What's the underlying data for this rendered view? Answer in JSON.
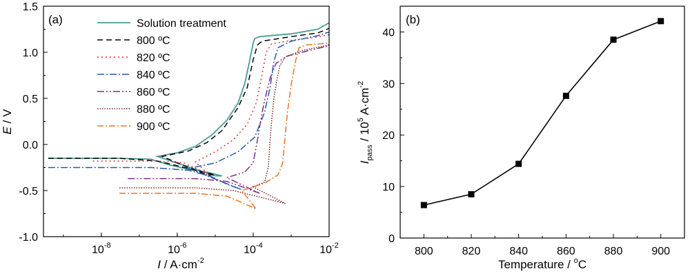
{
  "chart_data": [
    {
      "type": "line",
      "panel_label": "(a)",
      "xlabel": {
        "italic": "I",
        "text": " / A·cm",
        "sup": "-2"
      },
      "ylabel": {
        "italic": "E",
        "text": " / V"
      },
      "x_scale": "log",
      "xlim": [
        3e-10,
        0.01
      ],
      "ylim": [
        -1.0,
        1.5
      ],
      "x_ticks": [
        {
          "value": 1e-08,
          "base": "10",
          "exp": "-8"
        },
        {
          "value": 1e-06,
          "base": "10",
          "exp": "-6"
        },
        {
          "value": 0.0001,
          "base": "10",
          "exp": "-4"
        },
        {
          "value": 0.01,
          "base": "10",
          "exp": "-2"
        }
      ],
      "y_ticks": [
        {
          "value": -1.0,
          "label": "-1.0"
        },
        {
          "value": -0.5,
          "label": "-0.5"
        },
        {
          "value": 0.0,
          "label": "0.0"
        },
        {
          "value": 0.5,
          "label": "0.5"
        },
        {
          "value": 1.0,
          "label": "1.0"
        },
        {
          "value": 1.5,
          "label": "1.5"
        }
      ],
      "legend_position": "top-center",
      "series": [
        {
          "name": "Solution treatment",
          "color": "#4a9a94",
          "dash": "solid",
          "points": [
            [
              4e-10,
              -0.15
            ],
            [
              3e-08,
              -0.15
            ],
            [
              2e-07,
              -0.16
            ],
            [
              6e-07,
              -0.22
            ],
            [
              2e-06,
              -0.27
            ],
            [
              6e-06,
              -0.3
            ],
            [
              1.5e-05,
              -0.34
            ],
            [
              1e-05,
              -0.34
            ],
            [
              3e-07,
              -0.13
            ],
            [
              1e-06,
              -0.09
            ],
            [
              3e-06,
              -0.02
            ],
            [
              8e-06,
              0.1
            ],
            [
              2e-05,
              0.26
            ],
            [
              4e-05,
              0.45
            ],
            [
              6e-05,
              0.66
            ],
            [
              8e-05,
              0.9
            ],
            [
              0.0001,
              1.1
            ],
            [
              0.00011,
              1.15
            ],
            [
              0.00015,
              1.17
            ],
            [
              0.001,
              1.2
            ],
            [
              0.005,
              1.25
            ],
            [
              0.01,
              1.32
            ]
          ]
        },
        {
          "name": "800 ºC",
          "color": "#000000",
          "dash": "8,5",
          "points": [
            [
              4e-10,
              -0.15
            ],
            [
              3e-08,
              -0.15
            ],
            [
              3e-07,
              -0.18
            ],
            [
              1e-06,
              -0.23
            ],
            [
              4e-06,
              -0.29
            ],
            [
              1e-05,
              -0.33
            ],
            [
              6e-06,
              -0.33
            ],
            [
              4e-07,
              -0.13
            ],
            [
              2e-06,
              -0.07
            ],
            [
              6e-06,
              0.02
            ],
            [
              1.5e-05,
              0.15
            ],
            [
              4e-05,
              0.4
            ],
            [
              7e-05,
              0.62
            ],
            [
              0.0001,
              0.92
            ],
            [
              0.00013,
              1.08
            ],
            [
              0.00017,
              1.12
            ],
            [
              0.001,
              1.17
            ],
            [
              0.005,
              1.21
            ],
            [
              0.01,
              1.26
            ]
          ]
        },
        {
          "name": "820 ºC",
          "color": "#dc3030",
          "dash": "2,4",
          "points": [
            [
              6e-09,
              -0.18
            ],
            [
              3e-07,
              -0.18
            ],
            [
              1.5e-06,
              -0.2
            ],
            [
              4e-06,
              -0.28
            ],
            [
              9e-06,
              -0.37
            ],
            [
              3e-06,
              -0.19
            ],
            [
              1e-05,
              -0.08
            ],
            [
              3e-05,
              0.05
            ],
            [
              7e-05,
              0.22
            ],
            [
              0.00012,
              0.45
            ],
            [
              0.00017,
              0.75
            ],
            [
              0.00022,
              1.0
            ],
            [
              0.0003,
              1.09
            ],
            [
              0.001,
              1.13
            ],
            [
              0.004,
              1.16
            ],
            [
              0.01,
              1.19
            ]
          ]
        },
        {
          "name": "840 ºC",
          "color": "#2456b4",
          "dash": "10,3,2,3",
          "points": [
            [
              4e-10,
              -0.25
            ],
            [
              1e-08,
              -0.25
            ],
            [
              2e-07,
              -0.25
            ],
            [
              2e-06,
              -0.28
            ],
            [
              8e-06,
              -0.35
            ],
            [
              2e-05,
              -0.43
            ],
            [
              5e-05,
              -0.49
            ],
            [
              2e-06,
              -0.26
            ],
            [
              1e-05,
              -0.2
            ],
            [
              4e-05,
              -0.08
            ],
            [
              0.00011,
              0.08
            ],
            [
              0.0002,
              0.35
            ],
            [
              0.00028,
              0.62
            ],
            [
              0.00035,
              0.9
            ],
            [
              0.00045,
              1.05
            ],
            [
              0.001,
              1.12
            ],
            [
              0.005,
              1.18
            ],
            [
              0.01,
              1.22
            ]
          ]
        },
        {
          "name": "860 ºC",
          "color": "#7b2c8c",
          "dash": "10,3,2,3,2,3",
          "points": [
            [
              5e-08,
              -0.37
            ],
            [
              3e-06,
              -0.37
            ],
            [
              2e-05,
              -0.4
            ],
            [
              6e-05,
              -0.47
            ],
            [
              0.00015,
              -0.53
            ],
            [
              2e-05,
              -0.36
            ],
            [
              6e-05,
              -0.3
            ],
            [
              0.0001,
              -0.2
            ],
            [
              0.00013,
              0.05
            ],
            [
              0.00016,
              0.28
            ],
            [
              0.0002,
              0.48
            ],
            [
              0.00028,
              0.72
            ],
            [
              0.0004,
              0.88
            ],
            [
              0.0008,
              0.96
            ],
            [
              0.003,
              1.02
            ],
            [
              0.01,
              1.07
            ]
          ]
        },
        {
          "name": "880 ºC",
          "color": "#7a1c1c",
          "dash": "1.5,2",
          "points": [
            [
              3e-08,
              -0.47
            ],
            [
              3e-06,
              -0.47
            ],
            [
              3e-05,
              -0.5
            ],
            [
              0.00015,
              -0.57
            ],
            [
              0.0007,
              -0.64
            ],
            [
              0.0001,
              -0.46
            ],
            [
              0.0002,
              -0.41
            ],
            [
              0.00025,
              -0.25
            ],
            [
              0.00028,
              0.05
            ],
            [
              0.00031,
              0.28
            ],
            [
              0.00035,
              0.5
            ],
            [
              0.00042,
              0.7
            ],
            [
              0.0005,
              0.85
            ],
            [
              0.0007,
              0.95
            ],
            [
              0.002,
              1.02
            ],
            [
              0.01,
              1.08
            ]
          ]
        },
        {
          "name": "900 ºC",
          "color": "#e9741f",
          "dash": "9,3,2,3",
          "points": [
            [
              3e-08,
              -0.53
            ],
            [
              3e-06,
              -0.53
            ],
            [
              2e-05,
              -0.56
            ],
            [
              5e-05,
              -0.63
            ],
            [
              0.00012,
              -0.7
            ],
            [
              5e-05,
              -0.5
            ],
            [
              0.0002,
              -0.42
            ],
            [
              0.00045,
              -0.33
            ],
            [
              0.0006,
              -0.2
            ],
            [
              0.0007,
              0.1
            ],
            [
              0.0008,
              0.35
            ],
            [
              0.001,
              0.65
            ],
            [
              0.0013,
              0.9
            ],
            [
              0.0016,
              1.05
            ],
            [
              0.0025,
              1.08
            ],
            [
              0.01,
              1.1
            ]
          ]
        }
      ]
    },
    {
      "type": "line",
      "panel_label": "(b)",
      "xlabel": {
        "text": "Temperature / ",
        "sup": "o",
        "after": "C"
      },
      "ylabel": {
        "italic": "I",
        "sub": "pass",
        "text": " / 10",
        "sup": "5",
        "after": " A·cm",
        "sup2": "-2"
      },
      "xlim": [
        790,
        910
      ],
      "ylim": [
        0,
        45
      ],
      "x_ticks": [
        800,
        820,
        840,
        860,
        880,
        900
      ],
      "y_ticks": [
        0,
        10,
        20,
        30,
        40
      ],
      "series": [
        {
          "color": "#000000",
          "marker": "square",
          "x": [
            800,
            820,
            840,
            860,
            880,
            900
          ],
          "values": [
            6.4,
            8.5,
            14.4,
            27.6,
            38.5,
            42.1
          ]
        }
      ]
    }
  ]
}
